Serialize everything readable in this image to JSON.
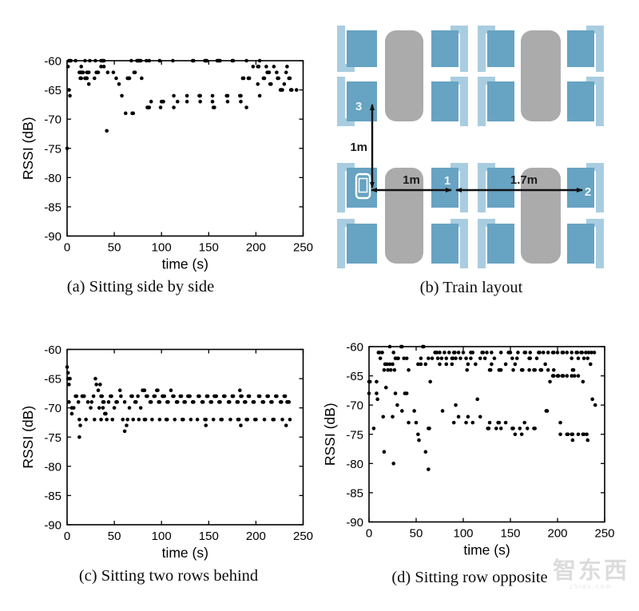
{
  "figure": {
    "captions": {
      "a": "(a) Sitting side by side",
      "b": "(b) Train layout",
      "c": "(c) Sitting two rows behind",
      "d": "(d) Sitting row opposite"
    },
    "watermark": {
      "text": "智东西",
      "subtext": "zhidx.com"
    }
  },
  "train_layout": {
    "labels": {
      "seat3": "3",
      "seat1": "1",
      "seat2": "2",
      "dist_vertical": "1m",
      "dist_table": "1m",
      "dist_across": "1.7m"
    },
    "colors": {
      "seat": "#67a3c2",
      "backrest": "#a9cde0",
      "table": "#ababab",
      "arrow": "#111111"
    }
  },
  "chart_data": [
    {
      "id": "a",
      "type": "scatter",
      "caption": "(a) Sitting side by side",
      "xlabel": "time (s)",
      "ylabel": "RSSI (dB)",
      "xlim": [
        0,
        250
      ],
      "ylim": [
        -90,
        -60
      ],
      "xticks": [
        0,
        50,
        100,
        150,
        200,
        250
      ],
      "yticks": [
        -60,
        -65,
        -70,
        -75,
        -80,
        -85,
        -90
      ],
      "marker": "black filled dot",
      "grid": false,
      "points_format": "bands: RSSI_dB -> list of time_s values",
      "bands": {
        "-60": [
          2,
          3,
          4,
          9,
          19,
          24,
          30,
          36,
          37,
          38,
          39,
          68,
          74,
          75,
          76,
          77,
          78,
          84,
          87,
          98,
          112,
          133,
          134,
          146,
          147,
          148,
          159,
          160,
          161,
          162,
          175,
          176,
          190,
          204
        ],
        "-61": [
          1,
          15,
          36,
          39,
          197,
          202,
          203,
          211,
          219,
          233
        ],
        "-62": [
          13,
          14,
          15,
          16,
          17,
          21,
          22,
          23,
          31,
          32,
          33,
          43,
          49,
          71,
          72,
          212,
          213,
          214,
          222,
          232
        ],
        "-63": [
          14,
          15,
          19,
          20,
          21,
          29,
          52,
          64,
          65,
          66,
          79,
          186,
          187,
          192,
          193,
          208,
          209,
          223,
          224,
          235,
          236
        ],
        "-64": [
          23,
          55,
          202,
          215,
          216,
          230
        ],
        "-65": [
          2,
          226,
          227,
          228,
          237,
          238,
          243
        ],
        "-66": [
          3,
          58,
          113,
          127,
          140,
          141,
          154,
          169,
          170,
          183,
          184,
          204
        ],
        "-67": [
          89,
          100,
          101,
          102,
          117,
          127,
          141,
          154,
          170,
          184
        ],
        "-68": [
          85,
          86,
          87,
          99,
          113,
          155,
          156,
          190
        ],
        "-69": [
          62,
          69,
          70
        ],
        "-72": [
          42
        ],
        "-75": [
          0
        ]
      }
    },
    {
      "id": "c",
      "type": "scatter",
      "caption": "(c) Sitting two rows behind",
      "xlabel": "time (s)",
      "ylabel": "RSSI (dB)",
      "xlim": [
        0,
        250
      ],
      "ylim": [
        -90,
        -60
      ],
      "xticks": [
        0,
        50,
        100,
        150,
        200,
        250
      ],
      "yticks": [
        -60,
        -65,
        -70,
        -75,
        -80,
        -85,
        -90
      ],
      "marker": "black filled dot",
      "grid": false,
      "points_format": "bands: RSSI_dB -> list of time_s values",
      "bands": {
        "-63": [
          0
        ],
        "-64": [
          1
        ],
        "-65": [
          1,
          3,
          30
        ],
        "-66": [
          2,
          31,
          35
        ],
        "-67": [
          33,
          56,
          80,
          81,
          82,
          95,
          96,
          110,
          183
        ],
        "-68": [
          9,
          10,
          16,
          17,
          18,
          28,
          36,
          37,
          46,
          47,
          57,
          68,
          69,
          75,
          84,
          85,
          92,
          93,
          101,
          102,
          103,
          112,
          113,
          120,
          121,
          128,
          129,
          130,
          139,
          140,
          148,
          149,
          156,
          157,
          158,
          166,
          167,
          175,
          176,
          184,
          185,
          192,
          193,
          203,
          204,
          212,
          213,
          221,
          222,
          230,
          231
        ],
        "-69": [
          2,
          12,
          22,
          26,
          38,
          39,
          44,
          52,
          53,
          61,
          72,
          73,
          88,
          89,
          97,
          98,
          106,
          107,
          116,
          117,
          124,
          125,
          133,
          134,
          143,
          144,
          152,
          153,
          161,
          162,
          171,
          172,
          180,
          181,
          188,
          189,
          197,
          198,
          207,
          208,
          216,
          217,
          226,
          227,
          233,
          234,
          235
        ],
        "-70": [
          5,
          7,
          25,
          34,
          38,
          50,
          66,
          78
        ],
        "-71": [
          5,
          40,
          41
        ],
        "-72": [
          13,
          20,
          29,
          36,
          42,
          48,
          59,
          64,
          70,
          76,
          82,
          83,
          90,
          98,
          105,
          106,
          114,
          122,
          123,
          131,
          138,
          146,
          147,
          155,
          163,
          164,
          173,
          181,
          182,
          190,
          191,
          199,
          200,
          209,
          218,
          219,
          228,
          236
        ],
        "-73": [
          14,
          63,
          147,
          184,
          232
        ],
        "-74": [
          61
        ],
        "-75": [
          13
        ]
      }
    },
    {
      "id": "d",
      "type": "scatter",
      "caption": "(d) Sitting row opposite",
      "xlabel": "time (s)",
      "ylabel": "RSSI (dB)",
      "xlim": [
        0,
        250
      ],
      "ylim": [
        -90,
        -60
      ],
      "xticks": [
        0,
        50,
        100,
        150,
        200,
        250
      ],
      "yticks": [
        -60,
        -65,
        -70,
        -75,
        -80,
        -85,
        -90
      ],
      "marker": "black filled dot",
      "grid": false,
      "points_format": "bands: RSSI_dB -> list of time_s values",
      "bands": {
        "-60": [
          22,
          34,
          35,
          57,
          58
        ],
        "-61": [
          10,
          11,
          14,
          26,
          70,
          71,
          72,
          75,
          80,
          85,
          90,
          91,
          95,
          100,
          108,
          110,
          120,
          121,
          125,
          130,
          140,
          148,
          149,
          150,
          158,
          165,
          166,
          171,
          180,
          181,
          185,
          190,
          195,
          196,
          200,
          205,
          206,
          210,
          215,
          220,
          221,
          225,
          226,
          230,
          233,
          236,
          239
        ],
        "-62": [
          12,
          28,
          30,
          31,
          37,
          40,
          55,
          63,
          67,
          73,
          77,
          82,
          88,
          89,
          92,
          97,
          103,
          108,
          118,
          123,
          133,
          152,
          157,
          170,
          171,
          178,
          215,
          222,
          228,
          232
        ],
        "-63": [
          17,
          19,
          22,
          25,
          52,
          55,
          60,
          75,
          82,
          88,
          105,
          113,
          130,
          145,
          155,
          187,
          235
        ],
        "-64": [
          16,
          20,
          23,
          27,
          42,
          104,
          128,
          129,
          138,
          139,
          140,
          153,
          162,
          163,
          170,
          175,
          176,
          182,
          183,
          190,
          196,
          216,
          217
        ],
        "-65": [
          195,
          196,
          200,
          201,
          205,
          206,
          210,
          215,
          218,
          222
        ],
        "-66": [
          0,
          1,
          8,
          65,
          192,
          227
        ],
        "-67": [
          18
        ],
        "-68": [
          0,
          8,
          28,
          38,
          40
        ],
        "-69": [
          9,
          115,
          237
        ],
        "-70": [
          30,
          92,
          240
        ],
        "-71": [
          35,
          48,
          78,
          188,
          189
        ],
        "-72": [
          15,
          25,
          95,
          105,
          118
        ],
        "-73": [
          42,
          50,
          90,
          103,
          110,
          128,
          137,
          138,
          145,
          165,
          203
        ],
        "-74": [
          5,
          63,
          64,
          126,
          127,
          135,
          140,
          152,
          153,
          160,
          168,
          175,
          176
        ],
        "-75": [
          52,
          155,
          162,
          203,
          210,
          211,
          215,
          216,
          222,
          227,
          228,
          231
        ],
        "-76": [
          53,
          216,
          232
        ],
        "-78": [
          16,
          60
        ],
        "-80": [
          26
        ],
        "-81": [
          63
        ]
      }
    }
  ]
}
